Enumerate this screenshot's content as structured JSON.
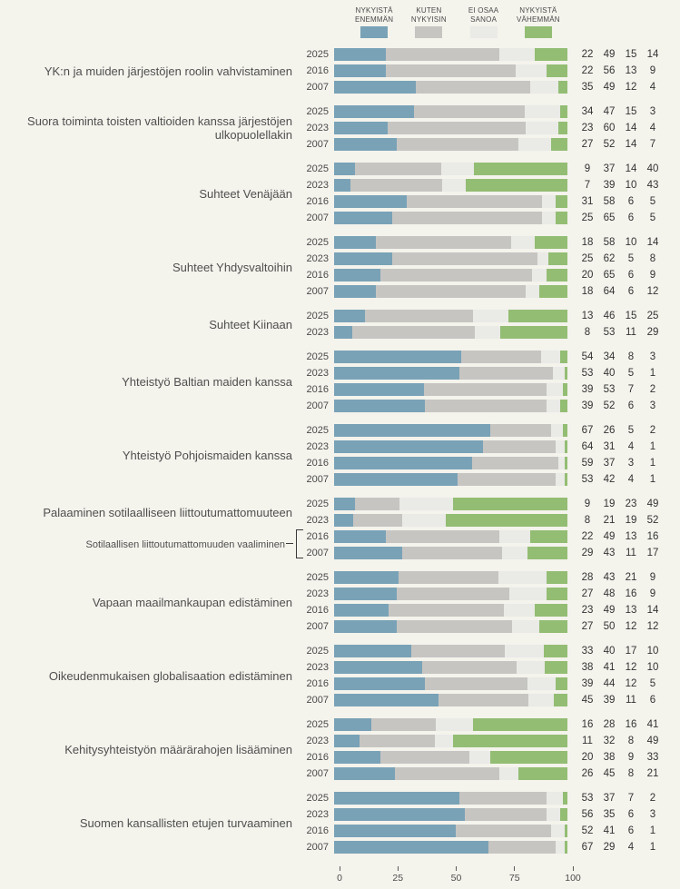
{
  "page": {
    "background": "#f4f3ec"
  },
  "legend": {
    "items": [
      {
        "line1": "NYKYISTÄ",
        "line2": "ENEMMÄN",
        "key": "enemman",
        "color": "#79a2b7"
      },
      {
        "line1": "KUTEN",
        "line2": "NYKYISIN",
        "key": "kuten-nykyisin",
        "color": "#c6c5c2"
      },
      {
        "line1": "EI OSAA",
        "line2": "SANOA",
        "key": "ei-osaa-sanoa",
        "color": "#eaeae7"
      },
      {
        "line1": "NYKYISTÄ",
        "line2": "VÄHEMMÄN",
        "key": "vahemman",
        "color": "#93bd73"
      }
    ]
  },
  "chart_data": {
    "type": "bar",
    "orientation": "horizontal",
    "stacked": true,
    "unit": "%",
    "xlim": [
      0,
      100
    ],
    "x_ticks": [
      "0",
      "25",
      "50",
      "75",
      "100"
    ],
    "series_names": [
      "NYKYISTÄ ENEMMÄN",
      "KUTEN NYKYISIN",
      "EI OSAA SANOA",
      "NYKYISTÄ VÄHEMMÄN"
    ],
    "series_keys": [
      "enemman",
      "kuten-nykyisin",
      "ei-osaa-sanoa",
      "vahemman"
    ],
    "colors": [
      "#79a2b7",
      "#c6c5c2",
      "#eaeae7",
      "#93bd73"
    ],
    "groups": [
      {
        "label": "YK:n ja muiden järjestöjen roolin vahvistaminen",
        "rows": [
          {
            "year": "2025",
            "values": [
              22,
              49,
              15,
              14
            ]
          },
          {
            "year": "2016",
            "values": [
              22,
              56,
              13,
              9
            ]
          },
          {
            "year": "2007",
            "values": [
              35,
              49,
              12,
              4
            ]
          }
        ]
      },
      {
        "label": "Suora toiminta toisten valtioiden kanssa järjestöjen ulkopuolellakin",
        "rows": [
          {
            "year": "2025",
            "values": [
              34,
              47,
              15,
              3
            ]
          },
          {
            "year": "2023",
            "values": [
              23,
              60,
              14,
              4
            ]
          },
          {
            "year": "2007",
            "values": [
              27,
              52,
              14,
              7
            ]
          }
        ]
      },
      {
        "label": "Suhteet Venäjään",
        "rows": [
          {
            "year": "2025",
            "values": [
              9,
              37,
              14,
              40
            ]
          },
          {
            "year": "2023",
            "values": [
              7,
              39,
              10,
              43
            ]
          },
          {
            "year": "2016",
            "values": [
              31,
              58,
              6,
              5
            ]
          },
          {
            "year": "2007",
            "values": [
              25,
              65,
              6,
              5
            ]
          }
        ]
      },
      {
        "label": "Suhteet Yhdysvaltoihin",
        "rows": [
          {
            "year": "2025",
            "values": [
              18,
              58,
              10,
              14
            ]
          },
          {
            "year": "2023",
            "values": [
              25,
              62,
              5,
              8
            ]
          },
          {
            "year": "2016",
            "values": [
              20,
              65,
              6,
              9
            ]
          },
          {
            "year": "2007",
            "values": [
              18,
              64,
              6,
              12
            ]
          }
        ]
      },
      {
        "label": "Suhteet Kiinaan",
        "rows": [
          {
            "year": "2025",
            "values": [
              13,
              46,
              15,
              25
            ]
          },
          {
            "year": "2023",
            "values": [
              8,
              53,
              11,
              29
            ]
          }
        ]
      },
      {
        "label": "Yhteistyö Baltian maiden kanssa",
        "rows": [
          {
            "year": "2025",
            "values": [
              54,
              34,
              8,
              3
            ]
          },
          {
            "year": "2023",
            "values": [
              53,
              40,
              5,
              1
            ]
          },
          {
            "year": "2016",
            "values": [
              39,
              53,
              7,
              2
            ]
          },
          {
            "year": "2007",
            "values": [
              39,
              52,
              6,
              3
            ]
          }
        ]
      },
      {
        "label": "Yhteistyö Pohjoismaiden kanssa",
        "rows": [
          {
            "year": "2025",
            "values": [
              67,
              26,
              5,
              2
            ]
          },
          {
            "year": "2023",
            "values": [
              64,
              31,
              4,
              1
            ]
          },
          {
            "year": "2016",
            "values": [
              59,
              37,
              3,
              1
            ]
          },
          {
            "year": "2007",
            "values": [
              53,
              42,
              4,
              1
            ]
          }
        ]
      },
      {
        "label": "Palaaminen sotilaalliseen liittoutumattomuuteen",
        "sub_label": "Sotilaallisen liittoutumattomuuden vaaliminen",
        "sub_label_rows": [
          "2016",
          "2007"
        ],
        "rows": [
          {
            "year": "2025",
            "values": [
              9,
              19,
              23,
              49
            ]
          },
          {
            "year": "2023",
            "values": [
              8,
              21,
              19,
              52
            ]
          },
          {
            "year": "2016",
            "values": [
              22,
              49,
              13,
              16
            ]
          },
          {
            "year": "2007",
            "values": [
              29,
              43,
              11,
              17
            ]
          }
        ]
      },
      {
        "label": "Vapaan maailmankaupan edistäminen",
        "rows": [
          {
            "year": "2025",
            "values": [
              28,
              43,
              21,
              9
            ]
          },
          {
            "year": "2023",
            "values": [
              27,
              48,
              16,
              9
            ]
          },
          {
            "year": "2016",
            "values": [
              23,
              49,
              13,
              14
            ]
          },
          {
            "year": "2007",
            "values": [
              27,
              50,
              12,
              12
            ]
          }
        ]
      },
      {
        "label": "Oikeudenmukaisen globalisaation edistäminen",
        "rows": [
          {
            "year": "2025",
            "values": [
              33,
              40,
              17,
              10
            ]
          },
          {
            "year": "2023",
            "values": [
              38,
              41,
              12,
              10
            ]
          },
          {
            "year": "2016",
            "values": [
              39,
              44,
              12,
              5
            ]
          },
          {
            "year": "2007",
            "values": [
              45,
              39,
              11,
              6
            ]
          }
        ]
      },
      {
        "label": "Kehitysyhteistyön määrärahojen lisääminen",
        "rows": [
          {
            "year": "2025",
            "values": [
              16,
              28,
              16,
              41
            ]
          },
          {
            "year": "2023",
            "values": [
              11,
              32,
              8,
              49
            ]
          },
          {
            "year": "2016",
            "values": [
              20,
              38,
              9,
              33
            ]
          },
          {
            "year": "2007",
            "values": [
              26,
              45,
              8,
              21
            ]
          }
        ]
      },
      {
        "label": "Suomen kansallisten etujen turvaaminen",
        "rows": [
          {
            "year": "2025",
            "values": [
              53,
              37,
              7,
              2
            ]
          },
          {
            "year": "2023",
            "values": [
              56,
              35,
              6,
              3
            ]
          },
          {
            "year": "2016",
            "values": [
              52,
              41,
              6,
              1
            ]
          },
          {
            "year": "2007",
            "values": [
              67,
              29,
              4,
              1
            ]
          }
        ]
      }
    ]
  }
}
